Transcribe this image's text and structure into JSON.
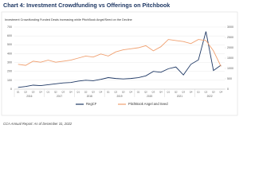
{
  "chart_data": {
    "type": "line",
    "title": "Chart 4: Investment Crowdfunding vs Offerings on Pitchbook",
    "subtitle": "Investment Crowdfunding Funded Deals increasing while PitchBook Angel/Seed on the Decline",
    "footer": "CCA Annual Report: As of December 31, 2022",
    "categories": [
      "Q1",
      "Q2",
      "Q3",
      "Q4",
      "Q1",
      "Q2",
      "Q3",
      "Q4",
      "Q1",
      "Q2",
      "Q3",
      "Q4",
      "Q1",
      "Q2",
      "Q3",
      "Q4",
      "Q1",
      "Q2",
      "Q3",
      "Q4",
      "Q1",
      "Q2",
      "Q3",
      "Q4",
      "Q1",
      "Q2",
      "Q3",
      "Q4"
    ],
    "year_groups": [
      "2016",
      "2017",
      "2018",
      "2019",
      "2020",
      "2021",
      "2022"
    ],
    "series": [
      {
        "name": "RegCF",
        "color": "#1f3864",
        "values": [
          20,
          30,
          45,
          40,
          50,
          60,
          70,
          75,
          90,
          100,
          95,
          110,
          130,
          120,
          115,
          120,
          130,
          150,
          200,
          190,
          230,
          250,
          160,
          280,
          330,
          650,
          210,
          270
        ]
      },
      {
        "name": "PitchBook  Angel and Seed",
        "color": "#f0a070",
        "axis": "y2",
        "values": [
          1200,
          1150,
          1350,
          1300,
          1400,
          1300,
          1350,
          1400,
          1500,
          1600,
          1550,
          1700,
          1600,
          1800,
          1900,
          1950,
          2000,
          2100,
          1850,
          2050,
          2400,
          2350,
          2300,
          2200,
          2400,
          2350,
          1850,
          1100
        ]
      }
    ],
    "ylim": [
      0,
      700
    ],
    "yticks": [
      0,
      100,
      200,
      300,
      400,
      500,
      600,
      700
    ],
    "y2lim": [
      0,
      3000
    ],
    "y2ticks": [
      0,
      500,
      1000,
      1500,
      2000,
      2500,
      3000
    ],
    "grid": true
  }
}
